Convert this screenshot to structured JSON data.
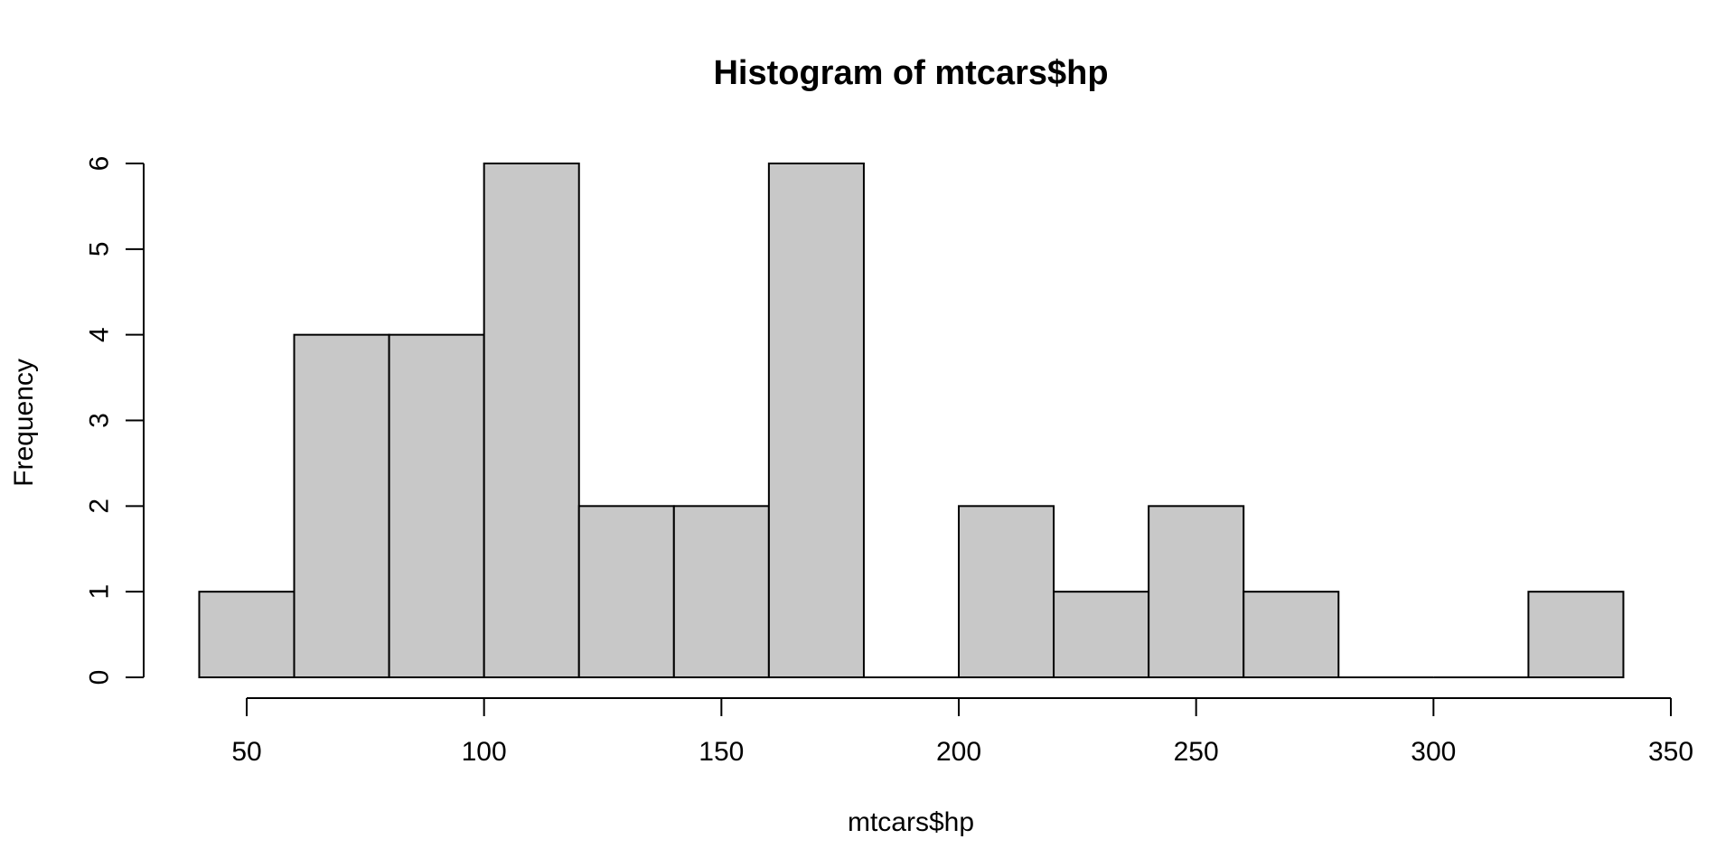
{
  "chart_data": {
    "type": "bar",
    "title": "Histogram of mtcars$hp",
    "xlabel": "mtcars$hp",
    "ylabel": "Frequency",
    "bins": [
      {
        "x0": 40,
        "x1": 60,
        "count": 1
      },
      {
        "x0": 60,
        "x1": 80,
        "count": 4
      },
      {
        "x0": 80,
        "x1": 100,
        "count": 4
      },
      {
        "x0": 100,
        "x1": 120,
        "count": 6
      },
      {
        "x0": 120,
        "x1": 140,
        "count": 2
      },
      {
        "x0": 140,
        "x1": 160,
        "count": 2
      },
      {
        "x0": 160,
        "x1": 180,
        "count": 6
      },
      {
        "x0": 180,
        "x1": 200,
        "count": 0
      },
      {
        "x0": 200,
        "x1": 220,
        "count": 2
      },
      {
        "x0": 220,
        "x1": 240,
        "count": 1
      },
      {
        "x0": 240,
        "x1": 260,
        "count": 2
      },
      {
        "x0": 260,
        "x1": 280,
        "count": 1
      },
      {
        "x0": 280,
        "x1": 300,
        "count": 0
      },
      {
        "x0": 300,
        "x1": 320,
        "count": 0
      },
      {
        "x0": 320,
        "x1": 340,
        "count": 1
      }
    ],
    "xlim": [
      40,
      350
    ],
    "ylim": [
      0,
      6
    ],
    "xticks": [
      50,
      100,
      150,
      200,
      250,
      300,
      350
    ],
    "yticks": [
      0,
      1,
      2,
      3,
      4,
      5,
      6
    ],
    "bar_color": "#c8c8c8",
    "grid": false,
    "legend": "none"
  }
}
